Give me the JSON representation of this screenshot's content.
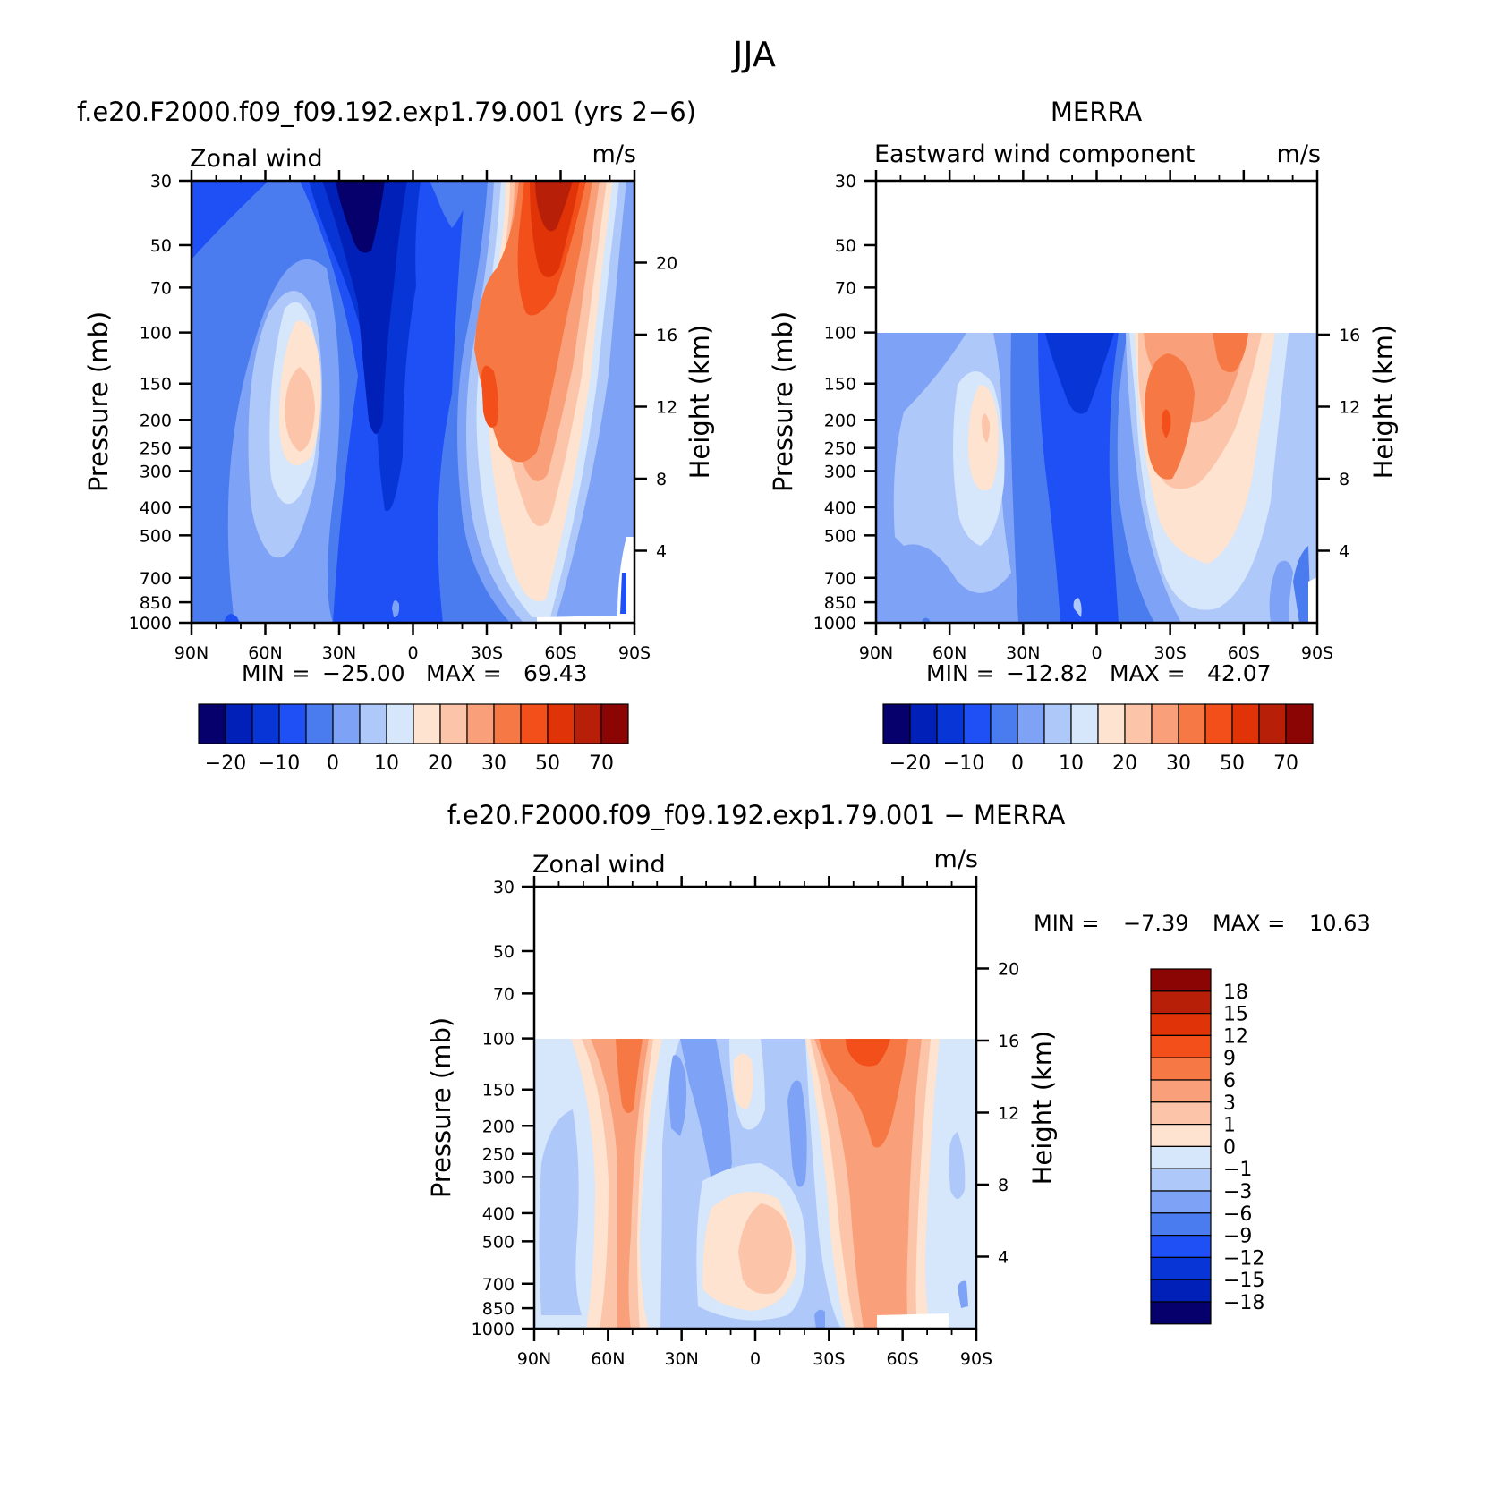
{
  "page_title": "JJA",
  "colors": {
    "model_scale": [
      "#05006b",
      "#0020b8",
      "#0836d6",
      "#1e50f5",
      "#4a7cf0",
      "#7ea2f5",
      "#afc8fa",
      "#d6e6fb",
      "#fde3d0",
      "#fcc4a8",
      "#f9a07a",
      "#f67844",
      "#f34f1a",
      "#e03307",
      "#b81f08",
      "#8c0505"
    ],
    "diff_scale": [
      "#8c0505",
      "#b81f08",
      "#e03307",
      "#f34f1a",
      "#f67844",
      "#f9a07a",
      "#fcc4a8",
      "#fde3d0",
      "#d6e6fb",
      "#afc8fa",
      "#7ea2f5",
      "#4a7cf0",
      "#1e50f5",
      "#0836d6",
      "#0020b8",
      "#05006b"
    ]
  },
  "chart_data": [
    {
      "type": "heatmap",
      "title": "f.e20.F2000.f09_f09.192.exp1.79.001 (yrs 2−6)",
      "left_label": "Zonal wind",
      "units": "m/s",
      "ylabel": "Pressure (mb)",
      "y2label": "Height (km)",
      "xticks": [
        "90N",
        "60N",
        "30N",
        "0",
        "30S",
        "60S",
        "90S"
      ],
      "yticks": [
        "30",
        "50",
        "70",
        "100",
        "150",
        "200",
        "250",
        "300",
        "400",
        "500",
        "700",
        "850",
        "1000"
      ],
      "y2ticks": [
        "20",
        "16",
        "12",
        "8",
        "4"
      ],
      "ylim": [
        1000,
        30
      ],
      "stats": {
        "min_label": "MIN =",
        "min": "−25.00",
        "max_label": "MAX =",
        "max": "69.43"
      },
      "colorbar_labels": [
        "−20",
        "−10",
        "0",
        "10",
        "20",
        "30",
        "50",
        "70"
      ]
    },
    {
      "type": "heatmap",
      "title": "MERRA",
      "left_label": "Eastward wind component",
      "units": "m/s",
      "ylabel": "Pressure (mb)",
      "y2label": "Height (km)",
      "xticks": [
        "90N",
        "60N",
        "30N",
        "0",
        "30S",
        "60S",
        "90S"
      ],
      "yticks": [
        "30",
        "50",
        "70",
        "100",
        "150",
        "200",
        "250",
        "300",
        "400",
        "500",
        "700",
        "850",
        "1000"
      ],
      "y2ticks": [
        "16",
        "12",
        "8",
        "4"
      ],
      "ylim": [
        1000,
        30
      ],
      "data_top_pressure": 100,
      "stats": {
        "min_label": "MIN =",
        "min": "−12.82",
        "max_label": "MAX =",
        "max": "42.07"
      },
      "colorbar_labels": [
        "−20",
        "−10",
        "0",
        "10",
        "20",
        "30",
        "50",
        "70"
      ]
    },
    {
      "type": "heatmap",
      "title": "f.e20.F2000.f09_f09.192.exp1.79.001 − MERRA",
      "left_label": "Zonal wind",
      "units": "m/s",
      "ylabel": "Pressure (mb)",
      "y2label": "Height (km)",
      "xticks": [
        "90N",
        "60N",
        "30N",
        "0",
        "30S",
        "60S",
        "90S"
      ],
      "yticks": [
        "30",
        "50",
        "70",
        "100",
        "150",
        "200",
        "250",
        "300",
        "400",
        "500",
        "700",
        "850",
        "1000"
      ],
      "y2ticks": [
        "20",
        "16",
        "12",
        "8",
        "4"
      ],
      "ylim": [
        1000,
        30
      ],
      "data_top_pressure": 100,
      "stats": {
        "min_label": "MIN =",
        "min": "−7.39",
        "max_label": "MAX =",
        "max": "10.63"
      },
      "colorbar_labels": [
        "18",
        "15",
        "12",
        "9",
        "6",
        "3",
        "1",
        "0",
        "−1",
        "−3",
        "−6",
        "−9",
        "−12",
        "−15",
        "−18"
      ]
    }
  ]
}
